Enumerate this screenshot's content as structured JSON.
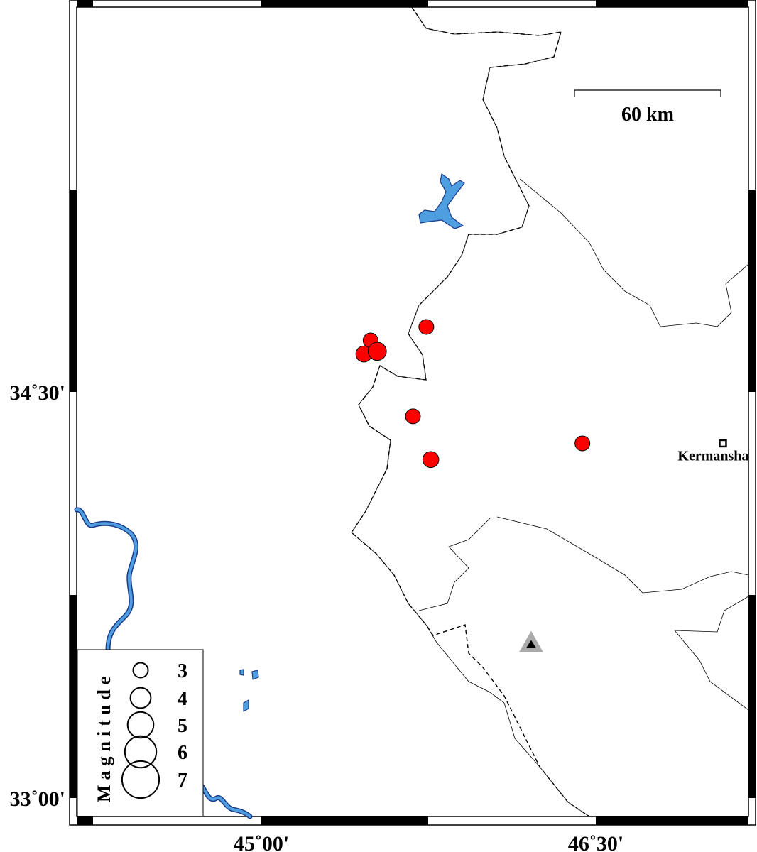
{
  "map": {
    "lon_ticks": [
      {
        "value": 45.0,
        "label": "45˚00'"
      },
      {
        "value": 46.5,
        "label": "46˚30'"
      }
    ],
    "lat_ticks": [
      {
        "value": 34.5,
        "label": "34˚30'"
      },
      {
        "value": 33.0,
        "label": "33˚00'"
      }
    ],
    "scale_bar": {
      "label": "60 km"
    },
    "city": {
      "name": "Kermanshah",
      "label": "Kermanshah",
      "lon": 47.07,
      "lat": 34.31,
      "icon": "square-marker-icon"
    },
    "station": {
      "lon": 46.21,
      "lat": 33.57,
      "icon": "triangle-station-icon",
      "color": "#000000",
      "halo_color": "#aaaaaa"
    },
    "events": [
      {
        "lon": 45.49,
        "lat": 34.69,
        "mag": 3.0
      },
      {
        "lon": 45.46,
        "lat": 34.64,
        "mag": 3.2
      },
      {
        "lon": 45.52,
        "lat": 34.65,
        "mag": 3.6
      },
      {
        "lon": 45.74,
        "lat": 34.74,
        "mag": 3.0
      },
      {
        "lon": 45.68,
        "lat": 34.41,
        "mag": 3.0
      },
      {
        "lon": 45.76,
        "lat": 34.25,
        "mag": 3.2
      },
      {
        "lon": 46.44,
        "lat": 34.31,
        "mag": 3.0
      }
    ],
    "colors": {
      "event": "#ff0000",
      "water": "#4f9fe0",
      "water_outline": "#1a3a8a",
      "border": "#000000"
    }
  },
  "legend": {
    "title": "Magnitude",
    "items": [
      {
        "mag": 3,
        "label": "3"
      },
      {
        "mag": 4,
        "label": "4"
      },
      {
        "mag": 5,
        "label": "5"
      },
      {
        "mag": 6,
        "label": "6"
      },
      {
        "mag": 7,
        "label": "7"
      }
    ]
  }
}
